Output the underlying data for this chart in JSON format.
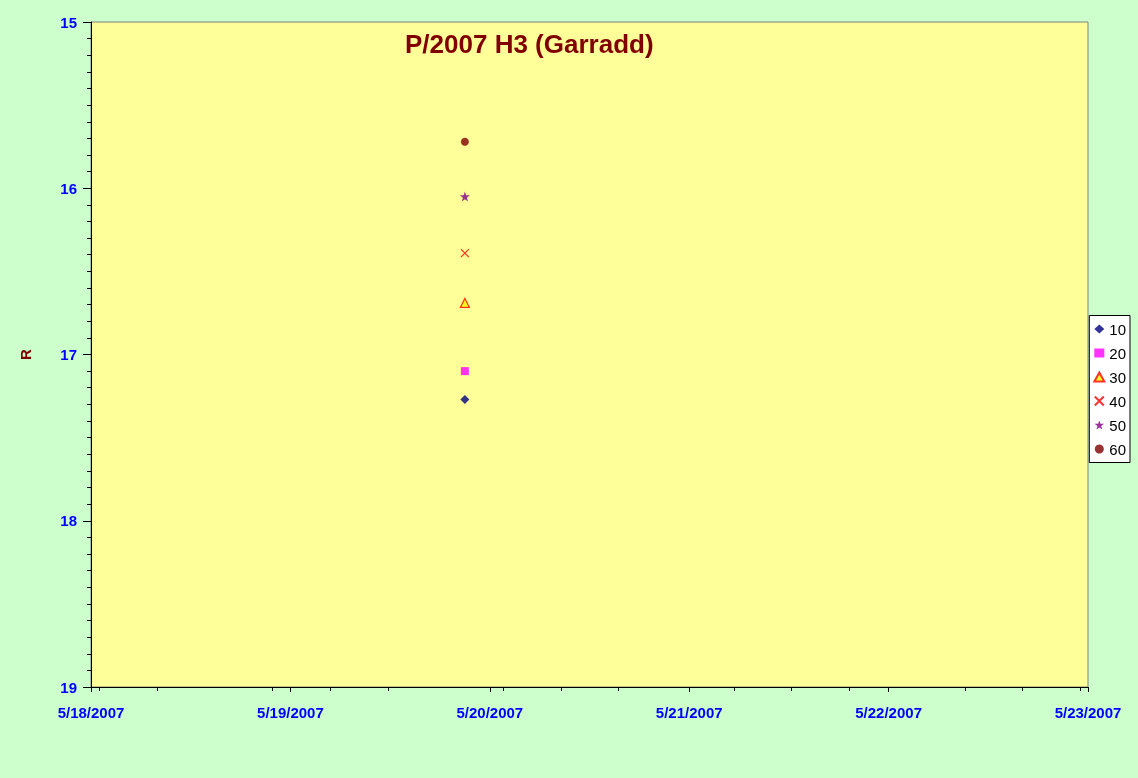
{
  "chart_data": {
    "type": "scatter",
    "title": "P/2007 H3 (Garradd)",
    "ylabel": "R",
    "xlim": [
      "2007-05-18",
      "2007-05-23"
    ],
    "xticks": [
      {
        "value": "2007-05-18",
        "label": "5/18/2007"
      },
      {
        "value": "2007-05-19",
        "label": "5/19/2007"
      },
      {
        "value": "2007-05-20",
        "label": "5/20/2007"
      },
      {
        "value": "2007-05-21",
        "label": "5/21/2007"
      },
      {
        "value": "2007-05-22",
        "label": "5/22/2007"
      },
      {
        "value": "2007-05-23",
        "label": "5/23/2007"
      }
    ],
    "ylim": [
      19,
      15
    ],
    "yticks": [
      15,
      16,
      17,
      18,
      19
    ],
    "grid": false,
    "legend": "right",
    "x": [
      "2007-05-19T21:00"
    ],
    "series": [
      {
        "name": "10",
        "color": "#000080",
        "marker": "diamond",
        "values": [
          17.27
        ]
      },
      {
        "name": "20",
        "color": "#ff00ff",
        "marker": "square",
        "values": [
          17.1
        ]
      },
      {
        "name": "30",
        "color": "#ff0000",
        "marker": "triangle",
        "values": [
          16.69
        ]
      },
      {
        "name": "40",
        "color": "#ff0000",
        "marker": "cross",
        "values": [
          16.39
        ]
      },
      {
        "name": "50",
        "color": "#800080",
        "marker": "star",
        "values": [
          16.05
        ]
      },
      {
        "name": "60",
        "color": "#800000",
        "marker": "circle",
        "values": [
          15.72
        ]
      }
    ]
  }
}
